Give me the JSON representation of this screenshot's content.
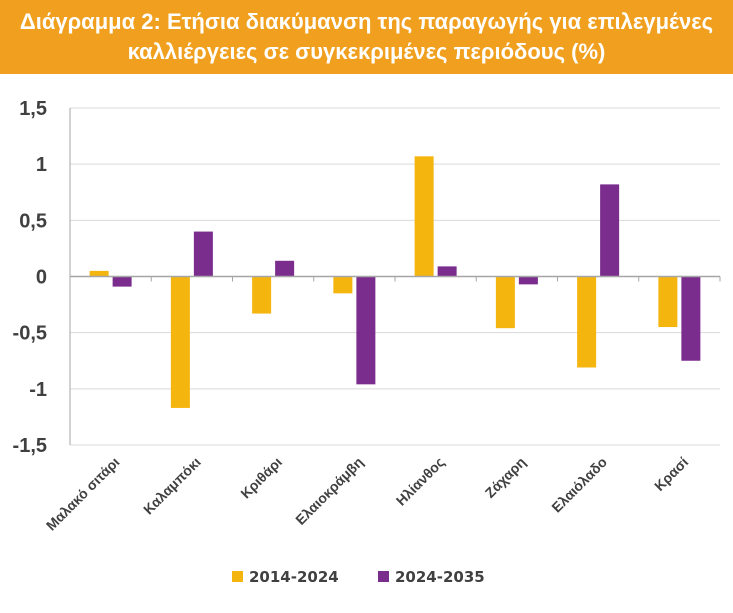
{
  "chart_data": {
    "type": "bar",
    "title": [
      "Διάγραμμα 2: Ετήσια διακύμανση της παραγωγής για επιλεγμένες",
      "καλλιέργειες σε συγκεκριμένες περιόδους (%)"
    ],
    "categories": [
      "Μαλακό σιτάρι",
      "Καλαμπόκι",
      "Κριθάρι",
      "Ελαιοκράμβη",
      "Ηλίανθος",
      "Ζάχαρη",
      "Ελαιόλαδο",
      "Κρασί"
    ],
    "series": [
      {
        "name": "2014-2024",
        "color": "#f5b50f",
        "values": [
          0.05,
          -1.17,
          -0.33,
          -0.15,
          1.07,
          -0.46,
          -0.81,
          -0.45
        ]
      },
      {
        "name": "2024-2035",
        "color": "#7b2d8e",
        "values": [
          -0.09,
          0.4,
          0.14,
          -0.96,
          0.09,
          -0.07,
          0.82,
          -0.75
        ]
      }
    ],
    "ylim": [
      -1.5,
      1.5
    ],
    "yticks": [
      1.5,
      1,
      0.5,
      0,
      -0.5,
      -1,
      -1.5
    ],
    "ytick_labels": [
      "1,5",
      "1",
      "0,5",
      "0",
      "-0,5",
      "-1",
      "-1,5"
    ],
    "grid": true,
    "legend": "bottom-center",
    "xlabel": "",
    "ylabel": ""
  }
}
